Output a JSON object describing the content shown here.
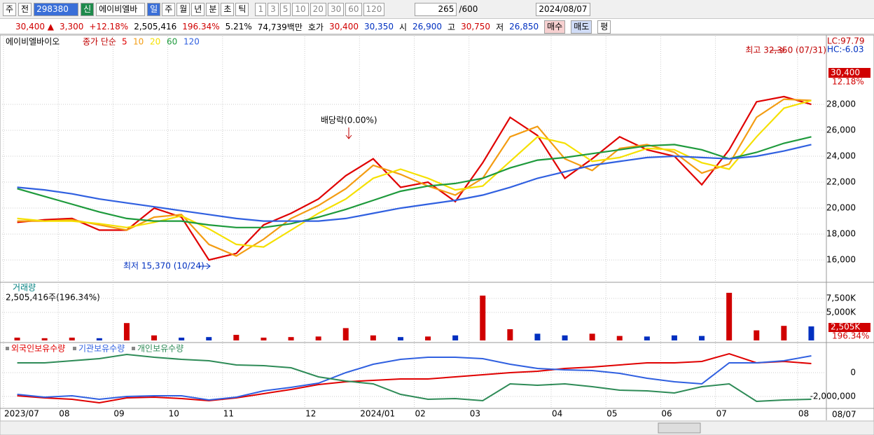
{
  "toolbar": {
    "type_btn": "주",
    "prev": "전",
    "code": "298380",
    "new_badge": "신",
    "name": "에이비엘바",
    "periods": [
      "일",
      "주",
      "월",
      "년",
      "분",
      "초",
      "틱"
    ],
    "intervals": [
      "1",
      "3",
      "5",
      "10",
      "20",
      "30",
      "60",
      "120"
    ],
    "count": "265",
    "max": "/600",
    "date": "2024/08/07"
  },
  "quote": {
    "price": "30,400 ▲",
    "change": "3,300",
    "rate": "+12.18%",
    "volume": "2,505,416",
    "vol_rate": "196.34%",
    "turnover": "5.21%",
    "amount": "74,739백만",
    "ask_label": "호가",
    "ask": "30,400",
    "bid": "30,350",
    "open_label": "시",
    "open": "26,900",
    "high_label": "고",
    "high": "30,750",
    "low_label": "저",
    "low": "26,850",
    "buy": "매수",
    "sell": "매도",
    "avg": "평"
  },
  "chart_data": [
    {
      "type": "line",
      "title": "에이비엘바이오",
      "legend_label": "종가 단순",
      "series": [
        {
          "name": "5",
          "color": "#e00000",
          "values": [
            18900,
            19100,
            19200,
            18300,
            18300,
            20000,
            19300,
            16000,
            16500,
            18700,
            19600,
            20700,
            22500,
            23800,
            21600,
            22000,
            20500,
            23500,
            27000,
            25600,
            22300,
            23800,
            25500,
            24500,
            24000,
            21800,
            24500,
            28200,
            28600,
            28000
          ]
        },
        {
          "name": "10",
          "color": "#f39c12",
          "values": [
            19000,
            19000,
            19100,
            18700,
            18300,
            19300,
            19500,
            17200,
            16300,
            17600,
            19200,
            20200,
            21500,
            23300,
            22600,
            21700,
            21000,
            22300,
            25500,
            26300,
            23800,
            22900,
            24600,
            24900,
            24300,
            22700,
            23400,
            27000,
            28400,
            28300
          ]
        },
        {
          "name": "20",
          "color": "#f5e000",
          "values": [
            19200,
            19000,
            19000,
            18800,
            18500,
            18900,
            19400,
            18400,
            17200,
            17000,
            18300,
            19600,
            20700,
            22300,
            23000,
            22300,
            21400,
            21700,
            23600,
            25500,
            25000,
            23600,
            23900,
            24600,
            24500,
            23500,
            23000,
            25500,
            27700,
            28300
          ]
        },
        {
          "name": "60",
          "color": "#1e9a3c",
          "values": [
            21500,
            20900,
            20300,
            19700,
            19200,
            19000,
            19000,
            18700,
            18500,
            18500,
            18800,
            19300,
            19900,
            20600,
            21300,
            21700,
            21900,
            22300,
            23100,
            23700,
            23900,
            24200,
            24500,
            24800,
            24900,
            24500,
            23800,
            24300,
            25000,
            25500
          ]
        },
        {
          "name": "120",
          "color": "#3060e0",
          "values": [
            21600,
            21400,
            21100,
            20700,
            20400,
            20100,
            19800,
            19500,
            19200,
            19000,
            19000,
            19000,
            19200,
            19600,
            20000,
            20300,
            20600,
            21000,
            21600,
            22300,
            22800,
            23300,
            23600,
            23900,
            24000,
            23900,
            23800,
            24000,
            24400,
            24900
          ]
        }
      ],
      "ylim": [
        14330,
        33240
      ],
      "yticks": [
        {
          "value": 16000,
          "label": "16,000"
        },
        {
          "value": 18000,
          "label": "18,000"
        },
        {
          "value": 20000,
          "label": "20,000"
        },
        {
          "value": 22000,
          "label": "22,000"
        },
        {
          "value": 24000,
          "label": "24,000"
        },
        {
          "value": 26000,
          "label": "26,000"
        },
        {
          "value": 28000,
          "label": "28,000"
        }
      ],
      "annotations": [
        "최고 32,350 (07/31)",
        "최저 15,370 (10/24)",
        "배당락(0.00%)"
      ],
      "right_labels": [
        "LC:97.79",
        "HC:-6.03"
      ],
      "last_price": "30,400",
      "last_rate": "12.18%"
    },
    {
      "type": "bar",
      "title": "거래량",
      "subtitle": "2,505,416주(196.34%)",
      "up_color": "#d00000",
      "down_color": "#0030c0",
      "values": [
        500,
        400,
        500,
        400,
        3100,
        900,
        500,
        600,
        1000,
        500,
        600,
        700,
        2200,
        900,
        600,
        700,
        900,
        8000,
        2000,
        1200,
        900,
        1200,
        800,
        700,
        900,
        800,
        8500,
        1800,
        2600,
        2505
      ],
      "ylim": [
        0,
        10250
      ],
      "yticks": [
        {
          "value": 5000,
          "label": "5,000K"
        },
        {
          "value": 7500,
          "label": "7,500K"
        }
      ],
      "last_label": "2,505K",
      "last_rate": "196.34%"
    },
    {
      "type": "line",
      "categories": [
        "2023/07",
        null,
        "08",
        null,
        "09",
        null,
        "10",
        null,
        "11",
        null,
        null,
        "12",
        null,
        "2024/01",
        null,
        "02",
        null,
        "03",
        null,
        null,
        "04",
        null,
        "05",
        null,
        "06",
        null,
        "07",
        null,
        null,
        "08"
      ],
      "x_end_label": "08/07",
      "series": [
        {
          "name": "외국인보유수량",
          "color": "#e00000",
          "values": [
            -1941000,
            -2118000,
            -2235000,
            -2529000,
            -2118000,
            -2059000,
            -2176000,
            -2353000,
            -2118000,
            -1765000,
            -1412000,
            -1000000,
            -765000,
            -647000,
            -529000,
            -529000,
            -353000,
            -176000,
            0,
            118000,
            353000,
            471000,
            647000,
            824000,
            824000,
            941000,
            1588000,
            824000,
            941000,
            765000
          ]
        },
        {
          "name": "기관보유수량",
          "color": "#3060e0",
          "values": [
            -1824000,
            -2059000,
            -1941000,
            -2235000,
            -2000000,
            -1941000,
            -1941000,
            -2294000,
            -2059000,
            -1529000,
            -1235000,
            -882000,
            0,
            706000,
            1118000,
            1294000,
            1294000,
            1176000,
            706000,
            353000,
            235000,
            176000,
            -59000,
            -471000,
            -765000,
            -941000,
            824000,
            824000,
            1000000,
            1412000
          ]
        },
        {
          "name": "개인보유수량",
          "color": "#2e8b57",
          "values": [
            824000,
            824000,
            1000000,
            1176000,
            1529000,
            1294000,
            1118000,
            1000000,
            647000,
            588000,
            412000,
            -353000,
            -706000,
            -941000,
            -1824000,
            -2235000,
            -2176000,
            -2353000,
            -941000,
            -1059000,
            -941000,
            -1176000,
            -1471000,
            -1529000,
            -1706000,
            -1176000,
            -941000,
            -2412000,
            -2294000,
            -2235000
          ]
        }
      ],
      "ylim": [
        -2940000,
        2470000
      ],
      "yticks": [
        0,
        {
          "value": -2000000,
          "label": "-2,000,000"
        }
      ]
    }
  ]
}
